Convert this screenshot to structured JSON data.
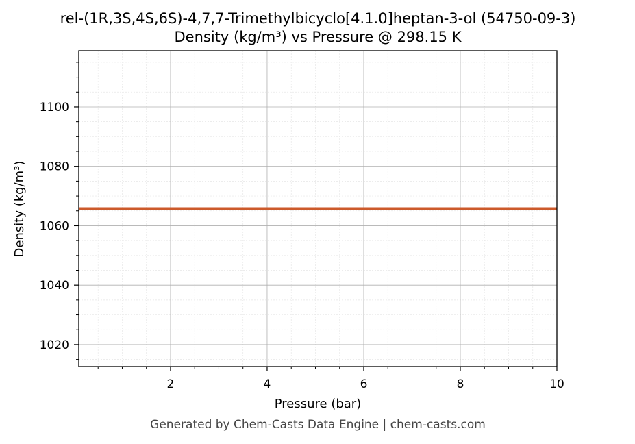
{
  "chart_data": {
    "type": "line",
    "title": "rel-(1R,3S,4S,6S)-4,7,7-Trimethylbicyclo[4.1.0]heptan-3-ol (54750-09-3)",
    "subtitle": "Density (kg/m³) vs Pressure @ 298.15 K",
    "xlabel": "Pressure (bar)",
    "ylabel": "Density (kg/m³)",
    "xlim": [
      0.1,
      10
    ],
    "ylim": [
      1012.6,
      1118.9
    ],
    "x_ticks": [
      2,
      4,
      6,
      8,
      10
    ],
    "y_ticks": [
      1020,
      1040,
      1060,
      1080,
      1100
    ],
    "grid": true,
    "series": [
      {
        "color": "#cc5a2b",
        "x": [
          0.1,
          1,
          2,
          3,
          4,
          5,
          6,
          7,
          8,
          9,
          10
        ],
        "y": [
          1065.8,
          1065.8,
          1065.8,
          1065.8,
          1065.8,
          1065.8,
          1065.8,
          1065.8,
          1065.8,
          1065.8,
          1065.8
        ]
      }
    ]
  },
  "footer": "Generated by Chem-Casts Data Engine | chem-casts.com"
}
